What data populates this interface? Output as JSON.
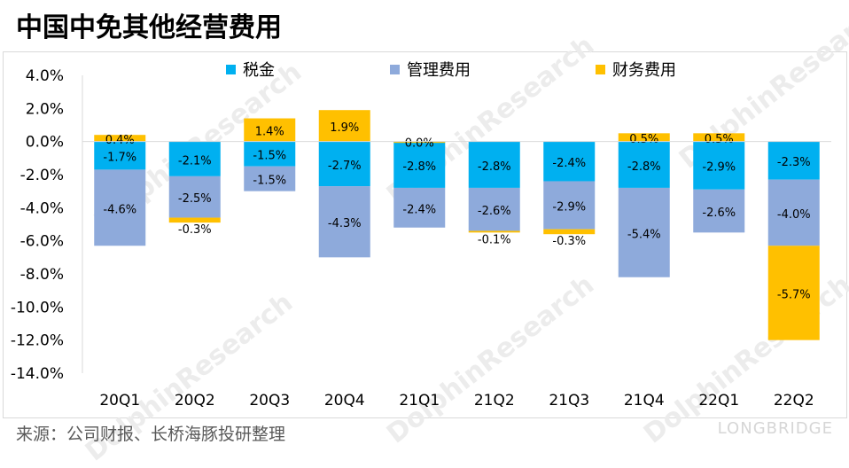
{
  "title": "中国中免其他经营费用",
  "source": "来源：公司财报、长桥海豚投研整理",
  "watermark": "DolphinResearch",
  "brand": "LONGBRIDGE",
  "chart_data": {
    "type": "bar",
    "stacked": true,
    "categories": [
      "20Q1",
      "20Q2",
      "20Q3",
      "20Q4",
      "21Q1",
      "21Q2",
      "21Q3",
      "21Q4",
      "22Q1",
      "22Q2"
    ],
    "series": [
      {
        "name": "税金",
        "color": "#00b0f0",
        "values": [
          -1.7,
          -2.1,
          -1.5,
          -2.7,
          -2.8,
          -2.8,
          -2.4,
          -2.8,
          -2.9,
          -2.3
        ],
        "labels": [
          "-1.7%",
          "-2.1%",
          "-1.5%",
          "-2.7%",
          "-2.8%",
          "-2.8%",
          "-2.4%",
          "-2.8%",
          "-2.9%",
          "-2.3%"
        ]
      },
      {
        "name": "管理费用",
        "color": "#8eaadb",
        "values": [
          -4.6,
          -2.5,
          -1.5,
          -4.3,
          -2.4,
          -2.6,
          -2.9,
          -5.4,
          -2.6,
          -4.0
        ],
        "labels": [
          "-4.6%",
          "-2.5%",
          "-1.5%",
          "-4.3%",
          "-2.4%",
          "-2.6%",
          "-2.9%",
          "-5.4%",
          "-2.6%",
          "-4.0%"
        ]
      },
      {
        "name": "财务费用",
        "color": "#ffc000",
        "values": [
          0.4,
          -0.3,
          1.4,
          1.9,
          0.0,
          -0.1,
          -0.3,
          0.5,
          0.5,
          -5.7
        ],
        "labels": [
          "0.4%",
          "-0.3%",
          "1.4%",
          "1.9%",
          "0.0%",
          "-0.1%",
          "-0.3%",
          "0.5%",
          "0.5%",
          "-5.7%"
        ]
      }
    ],
    "ylim": [
      -14,
      4
    ],
    "yticks": [
      4,
      2,
      0,
      -2,
      -4,
      -6,
      -8,
      -10,
      -12,
      -14
    ],
    "ytick_labels": [
      "4.0%",
      "2.0%",
      "0.0%",
      "-2.0%",
      "-4.0%",
      "-6.0%",
      "-8.0%",
      "-10.0%",
      "-12.0%",
      "-14.0%"
    ],
    "legend_position": "top"
  }
}
